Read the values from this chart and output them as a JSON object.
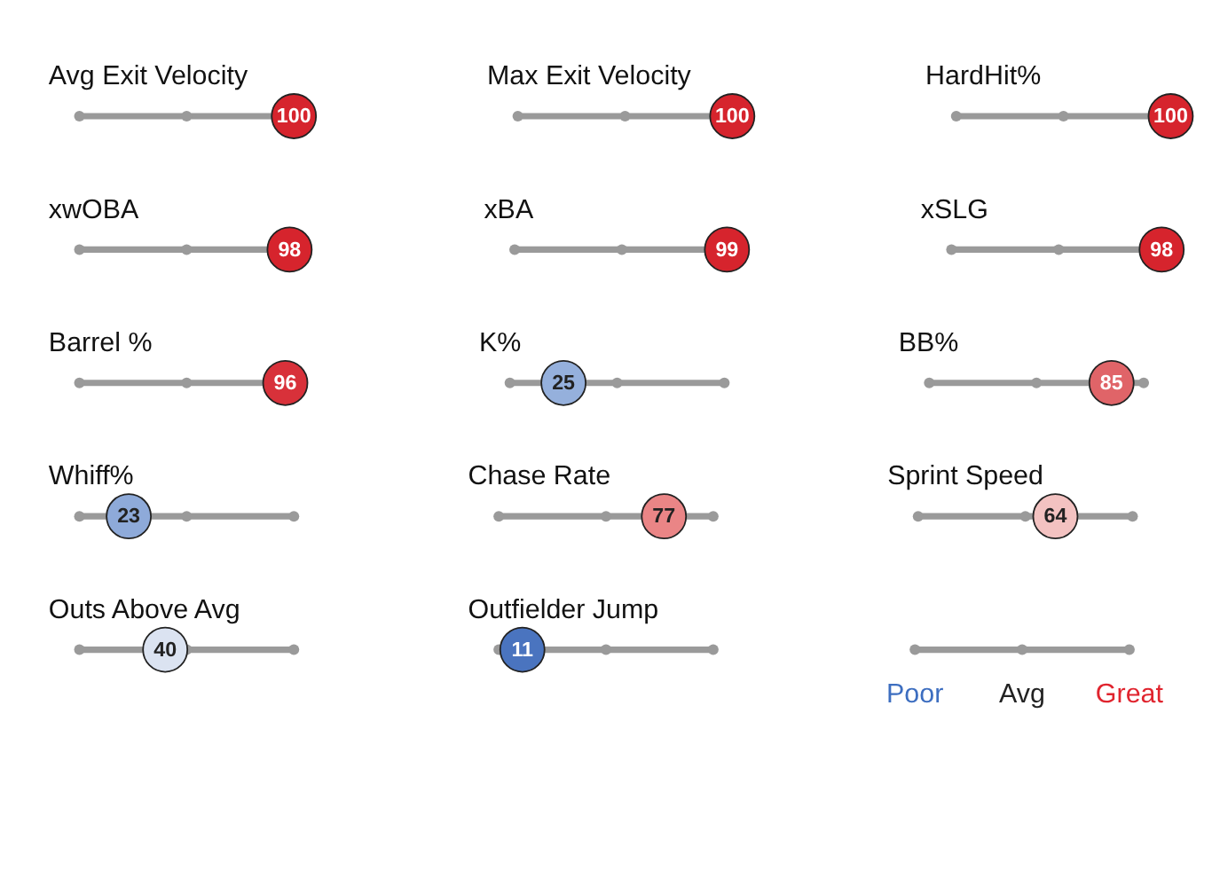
{
  "chart_data": [
    {
      "type": "other",
      "title": "Avg Exit Velocity",
      "values": [
        100
      ],
      "colors": [
        "#d6242d"
      ],
      "data_labels": true
    },
    {
      "type": "other",
      "title": "Max Exit Velocity",
      "values": [
        100
      ],
      "colors": [
        "#d6242d"
      ],
      "data_labels": true
    },
    {
      "type": "other",
      "title": "HardHit%",
      "values": [
        100
      ],
      "colors": [
        "#d6242d"
      ],
      "data_labels": true
    },
    {
      "type": "other",
      "title": "xwOBA",
      "values": [
        98
      ],
      "colors": [
        "#d6242d"
      ],
      "data_labels": true
    },
    {
      "type": "other",
      "title": "xBA",
      "values": [
        99
      ],
      "colors": [
        "#d6242d"
      ],
      "data_labels": true
    },
    {
      "type": "other",
      "title": "xSLG",
      "values": [
        98
      ],
      "colors": [
        "#d6242d"
      ],
      "data_labels": true
    },
    {
      "type": "other",
      "title": "Barrel %",
      "values": [
        96
      ],
      "colors": [
        "#d8313a"
      ],
      "data_labels": true
    },
    {
      "type": "other",
      "title": "K%",
      "values": [
        25
      ],
      "colors": [
        "#95b0dc"
      ],
      "data_labels": true
    },
    {
      "type": "other",
      "title": "BB%",
      "values": [
        85
      ],
      "colors": [
        "#e06468"
      ],
      "data_labels": true
    },
    {
      "type": "other",
      "title": "Whiff%",
      "values": [
        23
      ],
      "colors": [
        "#8eaad9"
      ],
      "data_labels": true
    },
    {
      "type": "other",
      "title": "Chase Rate",
      "values": [
        77
      ],
      "colors": [
        "#ea8586"
      ],
      "data_labels": true
    },
    {
      "type": "other",
      "title": "Sprint Speed",
      "values": [
        64
      ],
      "colors": [
        "#f3c2c1"
      ],
      "data_labels": true
    },
    {
      "type": "other",
      "title": "Outs Above Avg",
      "values": [
        40
      ],
      "colors": [
        "#dbe3f1"
      ],
      "data_labels": true
    },
    {
      "type": "other",
      "title": "Outfielder Jump",
      "values": [
        11
      ],
      "colors": [
        "#4a74bf"
      ],
      "data_labels": true
    },
    {
      "type": "other",
      "categories": [
        "Poor",
        "Avg",
        "Great"
      ],
      "colors": [
        "#3d6ec0",
        "#222222",
        "#e0242e"
      ]
    }
  ]
}
